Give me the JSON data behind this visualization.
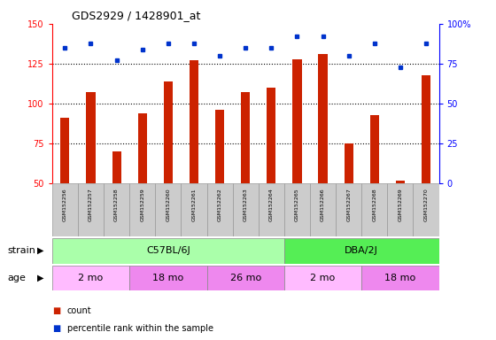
{
  "title": "GDS2929 / 1428901_at",
  "samples": [
    "GSM152256",
    "GSM152257",
    "GSM152258",
    "GSM152259",
    "GSM152260",
    "GSM152261",
    "GSM152262",
    "GSM152263",
    "GSM152264",
    "GSM152265",
    "GSM152266",
    "GSM152267",
    "GSM152268",
    "GSM152269",
    "GSM152270"
  ],
  "counts": [
    91,
    107,
    70,
    94,
    114,
    127,
    96,
    107,
    110,
    128,
    131,
    75,
    93,
    52,
    118
  ],
  "percentile_ranks": [
    85,
    88,
    77,
    84,
    88,
    88,
    80,
    85,
    85,
    92,
    92,
    80,
    88,
    73,
    88
  ],
  "bar_bottom": 50,
  "ylim_left": [
    50,
    150
  ],
  "ylim_right": [
    0,
    100
  ],
  "right_ticks": [
    0,
    25,
    50,
    75,
    100
  ],
  "right_tick_labels": [
    "0",
    "25",
    "50",
    "75",
    "100%"
  ],
  "left_ticks": [
    50,
    75,
    100,
    125,
    150
  ],
  "dotted_lines": [
    75,
    100,
    125
  ],
  "bar_color": "#cc2200",
  "dot_color": "#0033cc",
  "strain_groups": [
    {
      "label": "C57BL/6J",
      "start": 0,
      "end": 9,
      "color": "#aaffaa"
    },
    {
      "label": "DBA/2J",
      "start": 9,
      "end": 15,
      "color": "#55ee55"
    }
  ],
  "age_groups": [
    {
      "label": "2 mo",
      "start": 0,
      "end": 3,
      "color": "#ffbbff"
    },
    {
      "label": "18 mo",
      "start": 3,
      "end": 6,
      "color": "#ee88ee"
    },
    {
      "label": "26 mo",
      "start": 6,
      "end": 9,
      "color": "#ee88ee"
    },
    {
      "label": "2 mo",
      "start": 9,
      "end": 12,
      "color": "#ffbbff"
    },
    {
      "label": "18 mo",
      "start": 12,
      "end": 15,
      "color": "#ee88ee"
    }
  ],
  "strain_label": "strain",
  "age_label": "age",
  "legend_count": "count",
  "legend_percentile": "percentile rank within the sample",
  "left_color": "red",
  "right_color": "blue",
  "bg_color": "#cccccc",
  "plot_bg": "#ffffff",
  "bar_width": 0.35
}
